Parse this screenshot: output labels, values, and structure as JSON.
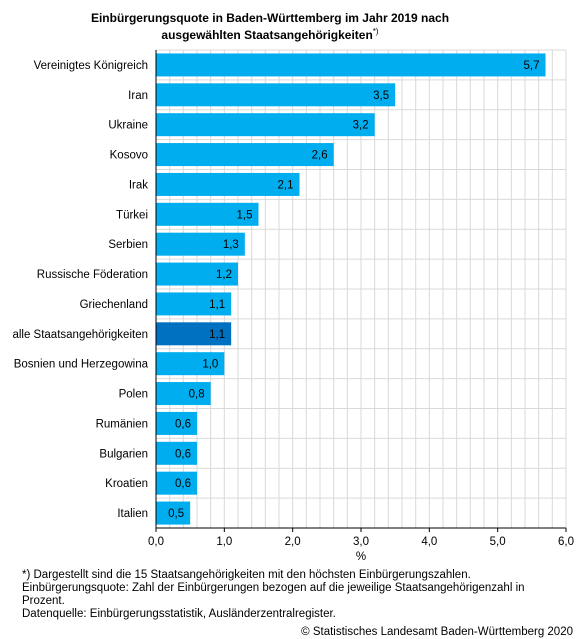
{
  "title": {
    "line1": "Einbürgerungsquote in Baden-Württemberg im Jahr 2019 nach",
    "line2": "ausgewählten Staatsangehörigkeiten",
    "marker": "*)"
  },
  "chart_data": {
    "type": "bar",
    "orientation": "horizontal",
    "categories": [
      "Vereinigtes Königreich",
      "Iran",
      "Ukraine",
      "Kosovo",
      "Irak",
      "Türkei",
      "Serbien",
      "Russische Föderation",
      "Griechenland",
      "alle Staatsangehörigkeiten",
      "Bosnien und Herzegowina",
      "Polen",
      "Rumänien",
      "Bulgarien",
      "Kroatien",
      "Italien"
    ],
    "values": [
      5.7,
      3.5,
      3.2,
      2.6,
      2.1,
      1.5,
      1.3,
      1.2,
      1.1,
      1.1,
      1.0,
      0.8,
      0.6,
      0.6,
      0.6,
      0.5
    ],
    "value_labels": [
      "5,7",
      "3,5",
      "3,2",
      "2,6",
      "2,1",
      "1,5",
      "1,3",
      "1,2",
      "1,1",
      "1,1",
      "1,0",
      "0,8",
      "0,6",
      "0,6",
      "0,6",
      "0,5"
    ],
    "highlight_category": "alle Staatsangehörigkeiten",
    "xlabel": "%",
    "xlim": [
      0,
      6
    ],
    "xticks": [
      0,
      1,
      2,
      3,
      4,
      5,
      6
    ],
    "xtick_labels": [
      "0,0",
      "1,0",
      "2,0",
      "3,0",
      "4,0",
      "5,0",
      "6,0"
    ],
    "grid": true,
    "colors": {
      "bar": "#00aeef",
      "highlight": "#0070c0",
      "grid": "#d9d9d9"
    }
  },
  "footnotes": [
    "*) Dargestellt sind die 15 Staatsangehörigkeiten mit den höchsten Einbürgerungszahlen.",
    "Einbürgerungsquote: Zahl der Einbürgerungen bezogen auf die jeweilige Staatsangehörigenzahl in",
    "Prozent.",
    "Datenquelle: Einbürgerungsstatistik, Ausländerzentralregister."
  ],
  "copyright": "© Statistisches Landesamt Baden-Württemberg 2020"
}
